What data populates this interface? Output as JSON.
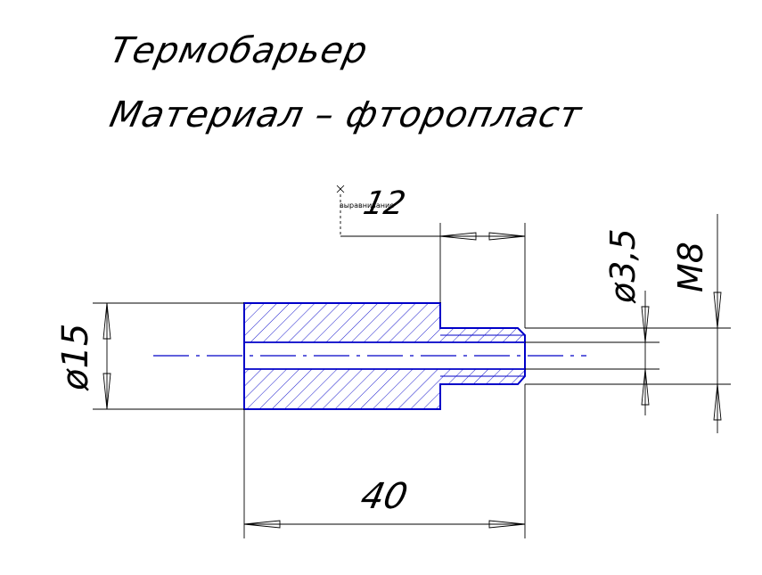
{
  "title": {
    "line1": "Термобарьер",
    "line2": "Материал – фторопласт"
  },
  "dimensions": {
    "step_length": "12",
    "total_length": "40",
    "outer_diameter": "ø15",
    "bore_diameter": "ø3,5",
    "thread": "M8"
  },
  "annotation": {
    "alignment_label": "выравнивание"
  },
  "colors": {
    "part_outline": "#0000c8",
    "dimension_lines": "#000000",
    "background": "#ffffff"
  }
}
